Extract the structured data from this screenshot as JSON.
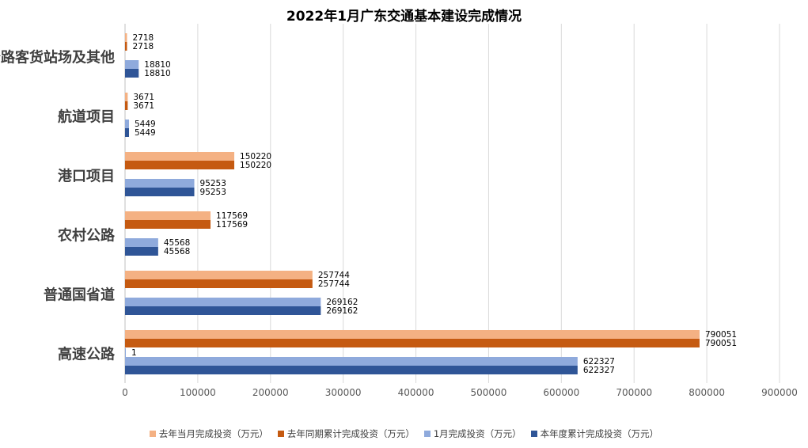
{
  "chart_data": {
    "type": "bar",
    "orientation": "horizontal",
    "title": "2022年1月广东交通基本建设完成情况",
    "categories": [
      "高速公路",
      "普通国省道",
      "农村公路",
      "港口项目",
      "航道项目",
      "公路客货站场及其他"
    ],
    "series": [
      {
        "name": "去年当月完成投资（万元）",
        "color": "#F4B183",
        "values": [
          790051,
          257744,
          117569,
          150220,
          3671,
          2718
        ]
      },
      {
        "name": "去年同期累计完成投资（万元）",
        "color": "#C55A11",
        "values": [
          790051,
          257744,
          117569,
          150220,
          3671,
          2718
        ]
      },
      {
        "color": "#8FAADC",
        "values": [
          1,
          null,
          null,
          null,
          null,
          null
        ]
      },
      {
        "name": "1月完成投资（万元）",
        "color": "#8FAADC",
        "values": [
          622327,
          269162,
          45568,
          95253,
          5449,
          18810
        ]
      },
      {
        "name": "本年度累计完成投资（万元）",
        "color": "#2F5597",
        "values": [
          622327,
          269162,
          45568,
          95253,
          5449,
          18810
        ]
      }
    ],
    "xlim": [
      0,
      900000
    ],
    "xticks": [
      "0",
      "100000",
      "200000",
      "300000",
      "400000",
      "500000",
      "600000",
      "700000",
      "800000",
      "900000"
    ],
    "grid": true,
    "legend": "bottom"
  }
}
